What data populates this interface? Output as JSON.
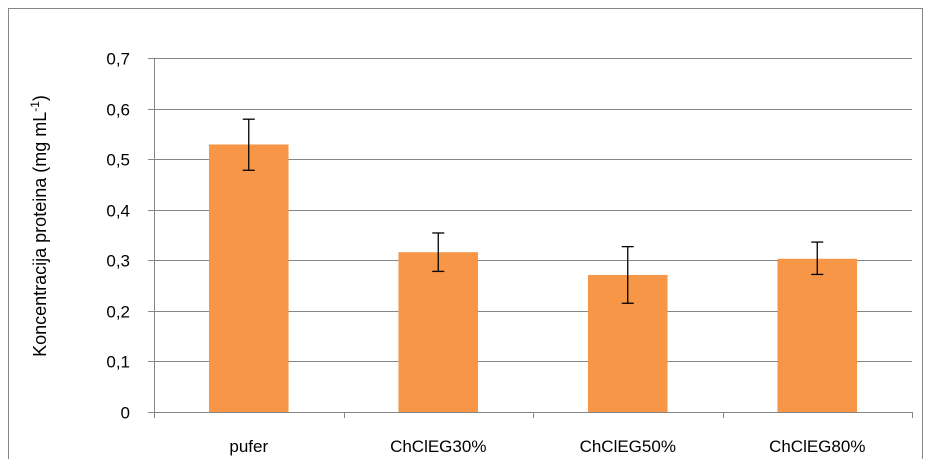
{
  "chart_data": {
    "type": "bar",
    "categories": [
      "pufer",
      "ChClEG30%",
      "ChClEG50%",
      "ChClEG80%"
    ],
    "values": [
      0.529,
      0.316,
      0.271,
      0.303
    ],
    "error_low": [
      0.478,
      0.278,
      0.215,
      0.272
    ],
    "error_high": [
      0.579,
      0.354,
      0.327,
      0.336
    ],
    "yticks": [
      "0",
      "0,1",
      "0,2",
      "0,3",
      "0,4",
      "0,5",
      "0,6",
      "0,7"
    ],
    "ylim": [
      0,
      0.7
    ],
    "ylabel": "Koncentracija proteina (mg mL",
    "ylabel_sup": "-1",
    "ylabel_close": ")",
    "xlabel": "",
    "title": "",
    "grid": "horizontal",
    "legend": "none",
    "colors": {
      "bar": "#F79646",
      "grid": "#868686",
      "axis": "#868686",
      "error": "#000000",
      "border": "#868686"
    }
  }
}
